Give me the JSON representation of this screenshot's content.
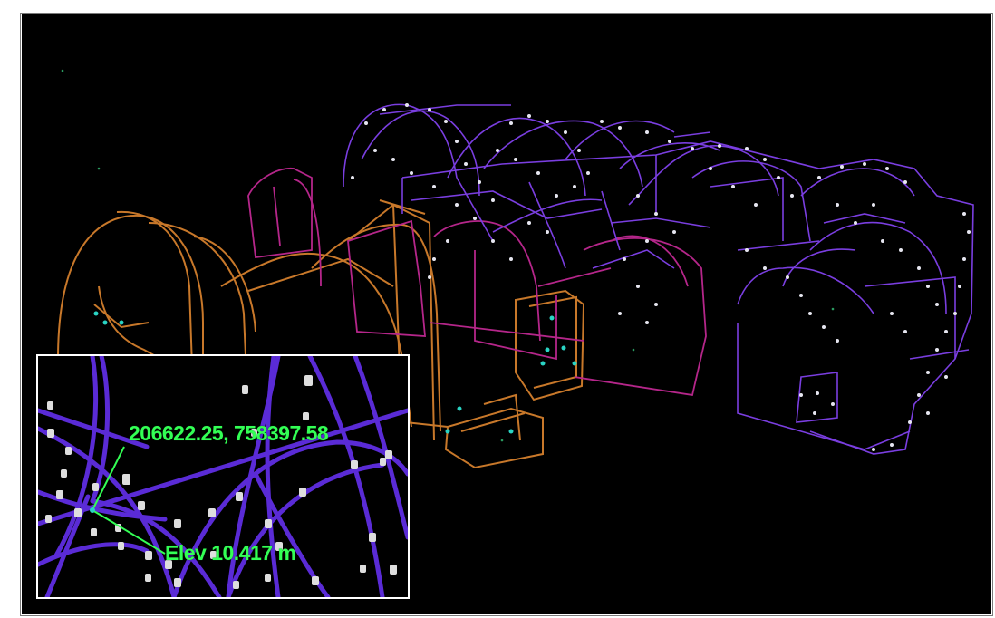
{
  "viewer": {
    "background_color": "#000000",
    "wire_colors": {
      "orange": "#c8782a",
      "magenta": "#b5268a",
      "purple": "#7a3ee0",
      "vertex": "#e6e6f0",
      "snap_vertex": "#2ad4c4"
    }
  },
  "inset": {
    "coordinate_label": "206622.25, 758397.58",
    "elevation_label": "Elev 10.417 m",
    "label_color": "#33ff55",
    "leader_color": "#33ff55",
    "line_color": "#5a2bd6"
  },
  "icons": {
    "snap_point": "snap-point-icon"
  }
}
